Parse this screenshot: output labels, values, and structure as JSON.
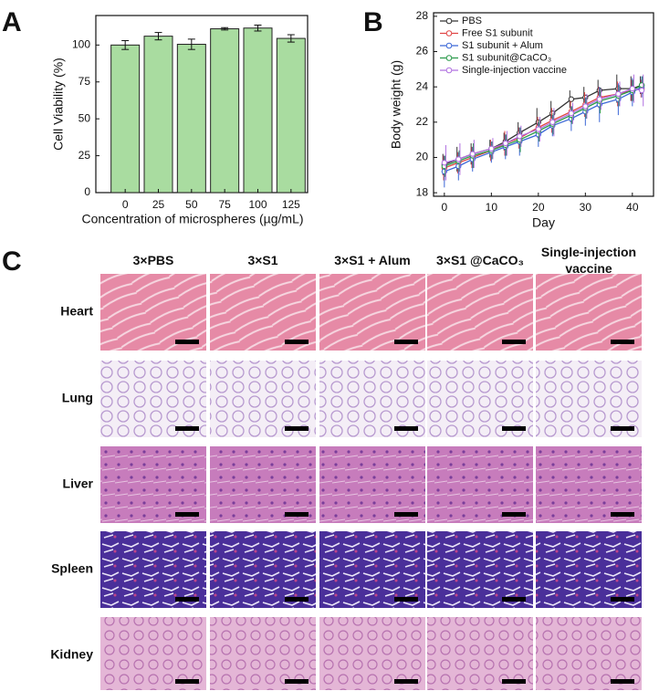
{
  "panel_labels": [
    "A",
    "B",
    "C"
  ],
  "chart_data": [
    {
      "type": "bar",
      "categories": [
        "0",
        "25",
        "50",
        "75",
        "100",
        "125"
      ],
      "values": [
        100,
        106,
        100.5,
        111,
        111.5,
        104.5
      ],
      "errors": [
        3,
        2.5,
        3.5,
        0.8,
        2,
        2.5
      ],
      "color": "#a9dca0",
      "edge_color": "#222222",
      "xlabel": "Concentration of microspheres (µg/mL)",
      "ylabel": "Cell Viability (%)",
      "ylim": [
        0,
        120
      ],
      "yticks": [
        0,
        25,
        50,
        75,
        100
      ]
    },
    {
      "type": "line",
      "x": [
        0,
        3,
        6,
        10,
        13,
        16,
        20,
        23,
        27,
        30,
        33,
        37,
        40,
        42
      ],
      "series": [
        {
          "name": "PBS",
          "color": "#333333",
          "values": [
            19.6,
            19.9,
            20.2,
            20.5,
            20.9,
            21.4,
            22.0,
            22.5,
            23.3,
            23.4,
            23.8,
            23.9,
            23.9,
            24.1
          ],
          "errors": [
            0.6,
            0.7,
            0.6,
            0.5,
            0.5,
            0.6,
            0.8,
            0.7,
            0.5,
            0.6,
            0.6,
            0.8,
            0.7,
            0.5
          ]
        },
        {
          "name": "Free S1 subunit",
          "color": "#e04545",
          "values": [
            19.4,
            19.7,
            20.0,
            20.4,
            20.8,
            21.1,
            21.7,
            22.1,
            22.6,
            23.0,
            23.4,
            23.6,
            23.8,
            23.9
          ],
          "errors": [
            0.7,
            0.6,
            0.6,
            0.6,
            0.7,
            0.6,
            0.6,
            0.7,
            0.6,
            0.7,
            0.6,
            0.7,
            0.6,
            0.5
          ]
        },
        {
          "name": "S1 subunit + Alum",
          "color": "#3a66d6",
          "values": [
            19.2,
            19.5,
            19.9,
            20.3,
            20.6,
            20.9,
            21.3,
            21.8,
            22.2,
            22.6,
            23.0,
            23.3,
            23.7,
            24.0
          ],
          "errors": [
            0.9,
            0.8,
            0.7,
            0.6,
            0.7,
            0.8,
            0.7,
            0.6,
            0.7,
            0.8,
            1.0,
            0.9,
            0.8,
            0.6
          ]
        },
        {
          "name": "S1 subunit@CaCO₃",
          "color": "#2a9a4a",
          "values": [
            19.5,
            19.8,
            20.1,
            20.4,
            20.7,
            21.0,
            21.5,
            21.9,
            22.4,
            22.8,
            23.2,
            23.5,
            23.8,
            24.1
          ],
          "errors": [
            0.6,
            0.6,
            0.7,
            0.5,
            0.6,
            0.7,
            0.6,
            0.6,
            0.5,
            0.6,
            0.7,
            0.6,
            0.6,
            0.5
          ]
        },
        {
          "name": "Single-injection vaccine",
          "color": "#b070e0",
          "values": [
            19.7,
            19.9,
            20.2,
            20.5,
            20.8,
            21.2,
            21.6,
            22.0,
            22.5,
            22.9,
            23.3,
            23.6,
            23.9,
            23.8
          ],
          "errors": [
            1.0,
            0.9,
            0.8,
            0.6,
            0.7,
            0.6,
            0.7,
            0.8,
            0.6,
            0.7,
            0.6,
            0.7,
            0.8,
            0.9
          ]
        }
      ],
      "xlabel": "Day",
      "ylabel": "Body weight (g)",
      "xlim": [
        -2.3,
        44.5
      ],
      "xticks": [
        0,
        10,
        20,
        30,
        40
      ],
      "ylim": [
        17.8,
        28.2
      ],
      "yticks": [
        18,
        20,
        22,
        24,
        26,
        28
      ],
      "legend": "upper left"
    }
  ],
  "histology": {
    "columns": [
      "3×PBS",
      "3×S1",
      "3×S1 + Alum",
      "3×S1 @CaCO₃",
      "Single-injection vaccine"
    ],
    "rows": [
      "Heart",
      "Lung",
      "Liver",
      "Spleen",
      "Kidney"
    ]
  }
}
